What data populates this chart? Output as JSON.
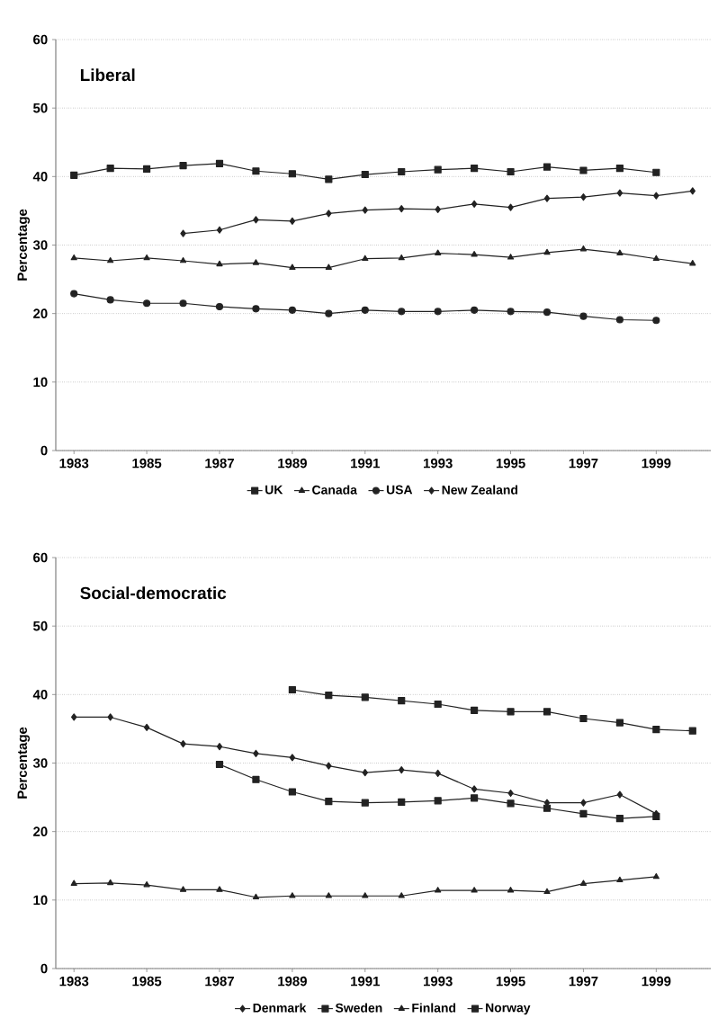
{
  "chart_data": [
    {
      "type": "line",
      "title": "Liberal",
      "ylabel": "Percentage",
      "categories": [
        "1983",
        null,
        "1985",
        null,
        "1987",
        null,
        "1989",
        null,
        "1991",
        null,
        "1993",
        null,
        "1995",
        null,
        "1997",
        null,
        "1999",
        null
      ],
      "ylim": [
        0,
        60
      ],
      "yticks": [
        0,
        10,
        20,
        30,
        40,
        50,
        60
      ],
      "grid": "y",
      "legend": "bottom",
      "series": [
        {
          "name": "UK",
          "color": "#222222",
          "marker": "square",
          "values": [
            40.2,
            41.2,
            41.1,
            41.6,
            41.9,
            40.8,
            40.4,
            39.6,
            40.3,
            40.7,
            41.0,
            41.2,
            40.7,
            41.4,
            40.9,
            41.2,
            40.6,
            null
          ]
        },
        {
          "name": "Canada",
          "color": "#222222",
          "marker": "triangle",
          "values": [
            28.1,
            27.7,
            28.1,
            27.7,
            27.2,
            27.4,
            26.7,
            26.7,
            28.0,
            28.1,
            28.8,
            28.6,
            28.2,
            28.9,
            29.4,
            28.8,
            28.0,
            27.3
          ]
        },
        {
          "name": "USA",
          "color": "#222222",
          "marker": "circle",
          "values": [
            22.9,
            22.0,
            21.5,
            21.5,
            21.0,
            20.7,
            20.5,
            20.0,
            20.5,
            20.3,
            20.3,
            20.5,
            20.3,
            20.2,
            19.6,
            19.1,
            19.0,
            null
          ]
        },
        {
          "name": "New Zealand",
          "color": "#222222",
          "marker": "diamond",
          "values": [
            null,
            null,
            null,
            31.7,
            32.2,
            33.7,
            33.5,
            34.6,
            35.1,
            35.3,
            35.2,
            36.0,
            35.5,
            36.8,
            37.0,
            37.6,
            37.2,
            37.9
          ]
        }
      ]
    },
    {
      "type": "line",
      "title": "Social-democratic",
      "ylabel": "Percentage",
      "categories": [
        "1983",
        null,
        "1985",
        null,
        "1987",
        null,
        "1989",
        null,
        "1991",
        null,
        "1993",
        null,
        "1995",
        null,
        "1997",
        null,
        "1999",
        null
      ],
      "ylim": [
        0,
        60
      ],
      "yticks": [
        0,
        10,
        20,
        30,
        40,
        50,
        60
      ],
      "grid": "y",
      "legend": "bottom",
      "series": [
        {
          "name": "Denmark",
          "color": "#222222",
          "marker": "diamond",
          "values": [
            36.7,
            36.7,
            35.2,
            32.8,
            32.4,
            31.4,
            30.8,
            29.6,
            28.6,
            29.0,
            28.5,
            26.2,
            25.6,
            24.2,
            24.2,
            25.4,
            22.6,
            null
          ]
        },
        {
          "name": "Sweden",
          "color": "#222222",
          "marker": "square",
          "values": [
            null,
            null,
            null,
            null,
            29.8,
            27.6,
            25.8,
            24.4,
            24.2,
            24.3,
            24.5,
            24.9,
            24.1,
            23.4,
            22.6,
            21.9,
            22.2,
            null
          ]
        },
        {
          "name": "Finland",
          "color": "#222222",
          "marker": "triangle",
          "values": [
            12.4,
            12.5,
            12.2,
            11.5,
            11.5,
            10.4,
            10.6,
            10.6,
            10.6,
            10.6,
            11.4,
            11.4,
            11.4,
            11.2,
            12.4,
            12.9,
            13.4,
            null
          ]
        },
        {
          "name": "Norway",
          "color": "#222222",
          "marker": "square",
          "values": [
            null,
            null,
            null,
            null,
            null,
            null,
            40.7,
            39.9,
            39.6,
            39.1,
            38.6,
            37.7,
            37.5,
            37.5,
            36.5,
            35.9,
            34.9,
            34.7
          ]
        }
      ]
    }
  ]
}
